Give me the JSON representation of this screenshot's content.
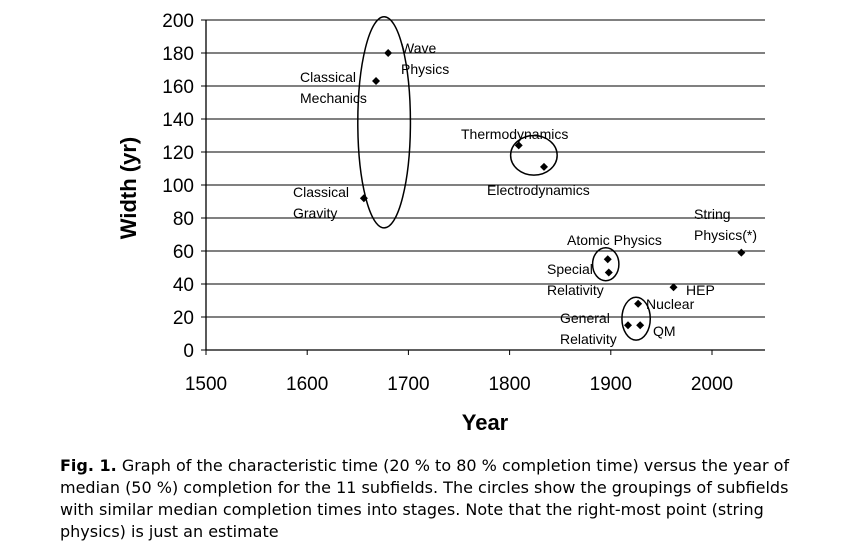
{
  "chart_data": {
    "type": "scatter",
    "title": "",
    "xlabel": "Year",
    "ylabel": "Width (yr)",
    "xlim": [
      1500,
      2050
    ],
    "ylim": [
      0,
      200
    ],
    "xticks": [
      1500,
      1600,
      1700,
      1800,
      1900,
      2000
    ],
    "yticks": [
      0,
      20,
      40,
      60,
      80,
      100,
      120,
      140,
      160,
      180,
      200
    ],
    "grid": "horizontal",
    "marker": "diamond",
    "points": [
      {
        "label": "Wave Physics",
        "x": 1680,
        "y": 180
      },
      {
        "label": "Classical Mechanics",
        "x": 1668,
        "y": 163
      },
      {
        "label": "Classical Gravity",
        "x": 1656,
        "y": 92
      },
      {
        "label": "Thermodynamics",
        "x": 1809,
        "y": 124
      },
      {
        "label": "Electrodynamics",
        "x": 1834,
        "y": 111
      },
      {
        "label": "Atomic Physics",
        "x": 1897,
        "y": 55
      },
      {
        "label": "Special Relativity",
        "x": 1898,
        "y": 47
      },
      {
        "label": "HEP",
        "x": 1962,
        "y": 38
      },
      {
        "label": "Nuclear",
        "x": 1927,
        "y": 28
      },
      {
        "label": "General Relativity",
        "x": 1917,
        "y": 15
      },
      {
        "label": "QM",
        "x": 1929,
        "y": 15
      },
      {
        "label": "String Physics(*)",
        "x": 2029,
        "y": 59
      }
    ],
    "annotations": [
      {
        "lines": [
          "Wave",
          "Physics"
        ]
      },
      {
        "lines": [
          "Classical",
          "Mechanics"
        ]
      },
      {
        "lines": [
          "Classical",
          "Gravity"
        ]
      },
      {
        "lines": [
          "Thermodynamics"
        ]
      },
      {
        "lines": [
          "Electrodynamics"
        ]
      },
      {
        "lines": [
          "Atomic Physics"
        ]
      },
      {
        "lines": [
          "Special",
          "Relativity"
        ]
      },
      {
        "lines": [
          "HEP"
        ]
      },
      {
        "lines": [
          "Nuclear"
        ]
      },
      {
        "lines": [
          "General",
          "Relativity"
        ]
      },
      {
        "lines": [
          "QM"
        ]
      },
      {
        "lines": [
          "String",
          "Physics(*)"
        ]
      }
    ],
    "groupings": [
      {
        "cx": 1676,
        "cy": 138,
        "rx": 26,
        "ry": 64
      },
      {
        "cx": 1824,
        "cy": 118,
        "rx": 23,
        "ry": 12
      },
      {
        "cx": 1895,
        "cy": 52,
        "rx": 13,
        "ry": 10
      },
      {
        "cx": 1925,
        "cy": 19,
        "rx": 14,
        "ry": 13
      }
    ]
  },
  "caption": {
    "lead": "Fig. 1.",
    "text": "Graph of the characteristic time (20 % to 80 % completion time) versus the year of median (50 %) completion for the 11 subfields. The circles show the groupings of subfields with similar median completion times into stages. Note that the right-most point (string physics) is just an estimate"
  }
}
